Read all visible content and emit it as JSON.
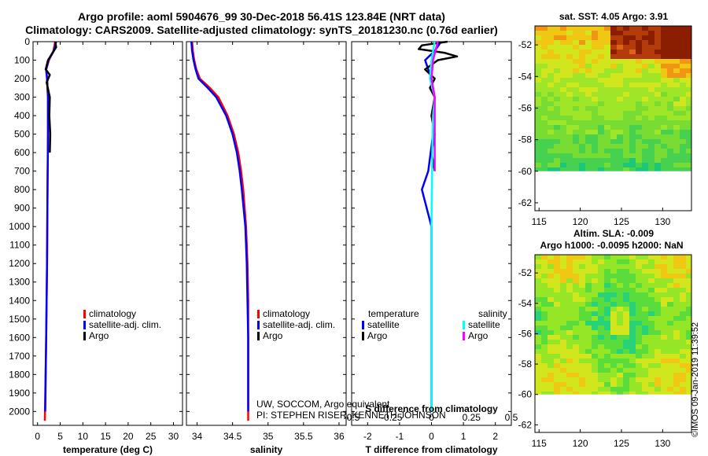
{
  "header": {
    "line1": "Argo profile: aoml 5904676_99 30-Dec-2018 56.41S 123.84E (NRT data)",
    "line2": "Climatology: CARS2009. Satellite-adjusted climatology: synTS_20181230.nc (0.76d earlier)"
  },
  "maps": {
    "sst_title": "sat. SST: 4.05 Argo: 3.91",
    "sla_title1": "Altim. SLA: -0.009",
    "sla_title2": "Argo h1000: -0.0095 h2000: NaN"
  },
  "credit": {
    "line1": "UW, SOCCOM, Argo equivalent",
    "line2": "PI: STEPHEN RISER, KENNETH JOHNSON"
  },
  "stamp": "©IMOS 09-Jan-2019 11:39:52",
  "colors": {
    "climatology": "#ff0000",
    "satellite": "#0000ff",
    "argo": "#000000",
    "sal_satellite": "#00ffff",
    "sal_argo": "#ff00ff"
  },
  "legend": {
    "climatology": "climatology",
    "satellite_adj": "satellite-adj. clim.",
    "argo": "Argo",
    "temperature": "temperature",
    "salinity": "salinity",
    "satellite": "satellite"
  },
  "chart_data": [
    {
      "type": "line",
      "panel": "temperature",
      "xlabel": "temperature (deg C)",
      "ylabel": "",
      "xlim": [
        -1,
        32
      ],
      "ylim": [
        2075,
        0
      ],
      "xticks": [
        0,
        5,
        10,
        15,
        20,
        25,
        30
      ],
      "yticks": [
        0,
        100,
        200,
        300,
        400,
        500,
        600,
        700,
        800,
        900,
        1000,
        1100,
        1200,
        1300,
        1400,
        1500,
        1600,
        1700,
        1800,
        1900,
        2000
      ],
      "series": [
        {
          "name": "climatology",
          "depth": [
            0,
            50,
            100,
            150,
            200,
            300,
            500,
            800,
            1200,
            1600,
            2050
          ],
          "values": [
            3.9,
            3.5,
            2.5,
            1.9,
            2.1,
            2.3,
            2.3,
            2.2,
            2.1,
            1.9,
            1.6
          ]
        },
        {
          "name": "satellite-adj. clim.",
          "depth": [
            0,
            50,
            100,
            150,
            200,
            300,
            500,
            800,
            1200,
            1600,
            2000
          ],
          "values": [
            4.1,
            3.6,
            2.4,
            1.9,
            2.1,
            2.3,
            2.3,
            2.2,
            2.1,
            1.9,
            1.7
          ]
        },
        {
          "name": "Argo",
          "depth": [
            0,
            30,
            60,
            100,
            150,
            180,
            220,
            300,
            400,
            500,
            600
          ],
          "values": [
            3.9,
            4.1,
            3.3,
            2.3,
            1.8,
            2.7,
            2.0,
            2.7,
            2.6,
            2.8,
            2.7
          ]
        }
      ]
    },
    {
      "type": "line",
      "panel": "salinity",
      "xlabel": "salinity",
      "ylabel": "",
      "xlim": [
        33.85,
        36.1
      ],
      "ylim": [
        2075,
        0
      ],
      "xticks": [
        34,
        34.5,
        35,
        35.5,
        36
      ],
      "series": [
        {
          "name": "climatology",
          "depth": [
            0,
            50,
            100,
            150,
            200,
            250,
            300,
            400,
            500,
            600,
            700,
            800,
            1000,
            1200,
            1400,
            1600,
            2050
          ],
          "values": [
            33.93,
            33.94,
            33.96,
            33.99,
            34.04,
            34.18,
            34.3,
            34.43,
            34.52,
            34.58,
            34.62,
            34.65,
            34.69,
            34.71,
            34.72,
            34.72,
            34.72
          ]
        },
        {
          "name": "satellite-adj. clim.",
          "depth": [
            0,
            50,
            100,
            150,
            200,
            250,
            300,
            400,
            500,
            600,
            700,
            800,
            1000,
            1200,
            1400,
            1600,
            2000
          ],
          "values": [
            33.92,
            33.93,
            33.95,
            33.98,
            34.02,
            34.15,
            34.27,
            34.41,
            34.5,
            34.56,
            34.6,
            34.63,
            34.68,
            34.7,
            34.71,
            34.72,
            34.72
          ]
        }
      ]
    },
    {
      "type": "line",
      "panel": "difference",
      "xlabel": "T difference from climatology",
      "xlabel2": "S difference from climatology",
      "xlim": [
        -2.5,
        2.5
      ],
      "ylim": [
        2075,
        0
      ],
      "xticks": [
        -2,
        -1,
        0,
        1,
        2
      ],
      "xticks2": [
        -0.5,
        -0.25,
        0,
        0.25,
        0.5
      ],
      "xtick_labels2": [
        "-0.5",
        "-0.25",
        "0",
        "0.25",
        "0.5"
      ],
      "series": [
        {
          "name": "T satellite",
          "depth": [
            0,
            50,
            100,
            150,
            200,
            250,
            300,
            500,
            700,
            800,
            1000,
            1500,
            2000
          ],
          "values": [
            0.3,
            0.1,
            -0.2,
            -0.1,
            0.0,
            0.05,
            0.1,
            0.05,
            -0.1,
            -0.3,
            0.0,
            0.0,
            0.0
          ]
        },
        {
          "name": "T Argo",
          "depth": [
            0,
            20,
            40,
            60,
            80,
            100,
            150,
            200,
            250,
            300,
            400,
            500,
            600,
            700
          ],
          "values": [
            0.5,
            -0.3,
            -0.4,
            0.4,
            0.8,
            0.2,
            -0.2,
            0.1,
            -0.05,
            0.1,
            0.0,
            0.1,
            0.0,
            0.1
          ]
        },
        {
          "name": "S satellite",
          "depth": [
            0,
            100,
            200,
            300,
            400,
            600,
            1000,
            2000
          ],
          "values": [
            0.02,
            0.0,
            -0.01,
            0.02,
            0.01,
            0.005,
            0.0,
            0.0
          ]
        },
        {
          "name": "S Argo",
          "depth": [
            0,
            100,
            200,
            300,
            500,
            700
          ],
          "values": [
            0.04,
            0.01,
            0.0,
            0.02,
            0.02,
            0.02
          ]
        }
      ]
    },
    {
      "type": "heatmap",
      "panel": "sst map",
      "title": "sat. SST: 4.05 Argo: 3.91",
      "xlim": [
        114.5,
        133.5
      ],
      "ylim": [
        -62.5,
        -50.8
      ],
      "xticks": [
        115,
        120,
        125,
        130
      ],
      "yticks": [
        -52,
        -54,
        -56,
        -58,
        -60,
        -62
      ],
      "land_or_missing_below": -60
    },
    {
      "type": "heatmap",
      "panel": "sla map",
      "title": "Altim. SLA: -0.009",
      "xlim": [
        114.5,
        133.5
      ],
      "ylim": [
        -62.5,
        -50.8
      ],
      "xticks": [
        115,
        120,
        125,
        130
      ],
      "yticks": [
        -52,
        -54,
        -56,
        -58,
        -60,
        -62
      ],
      "land_or_missing_below": -60
    }
  ]
}
